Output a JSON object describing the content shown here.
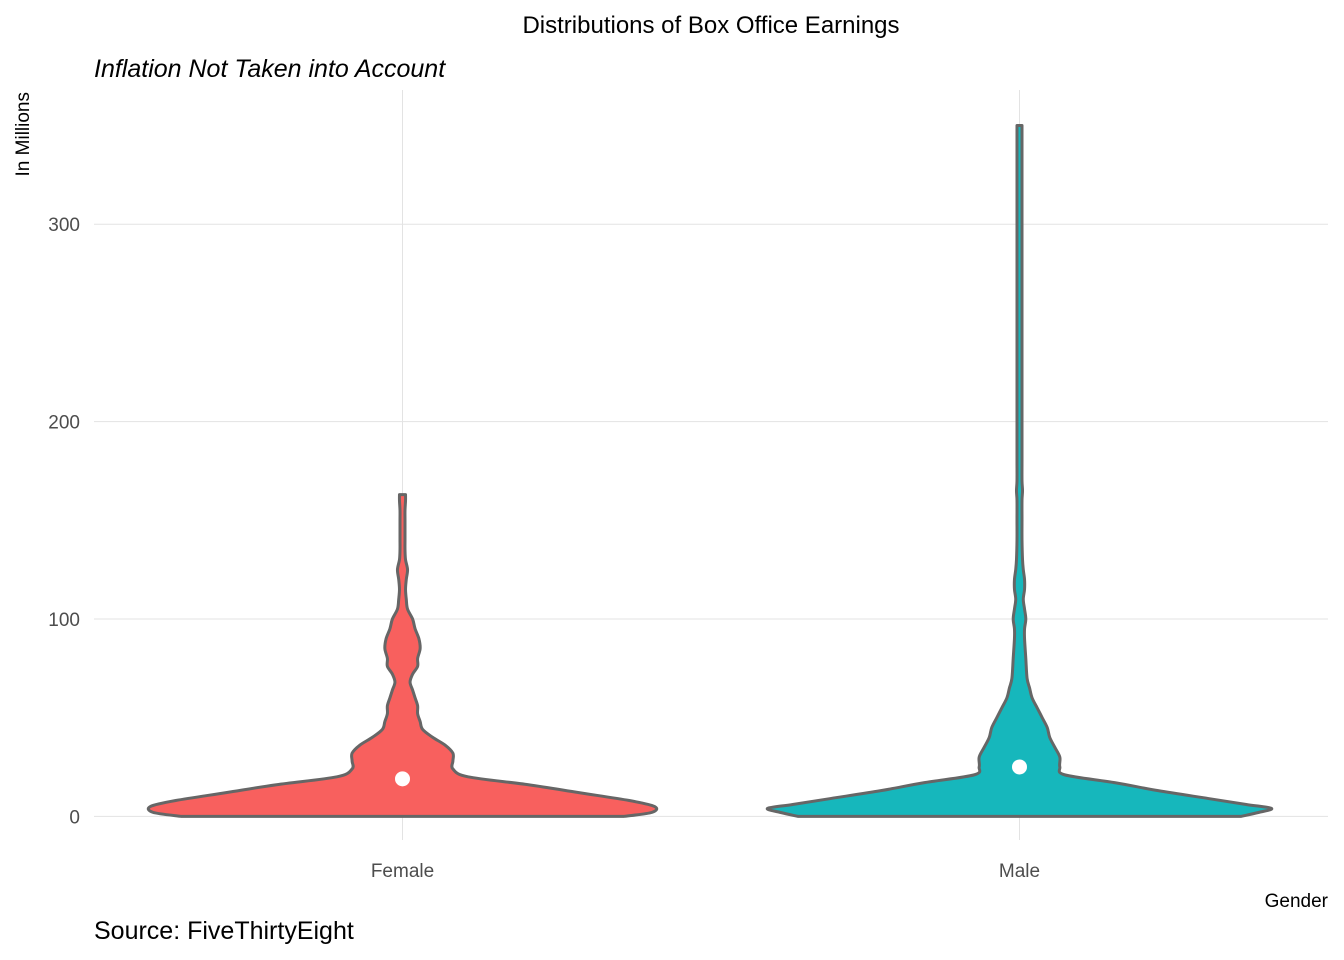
{
  "chart_data": {
    "type": "violin",
    "title": "Distributions of Box Office Earnings",
    "subtitle": "Inflation Not Taken into Account",
    "xlabel": "Gender",
    "ylabel": "In Millions",
    "caption": "Source: FiveThirtyEight",
    "categories": [
      "Female",
      "Male"
    ],
    "ylim": [
      -12,
      368
    ],
    "y_ticks": [
      0,
      100,
      200,
      300
    ],
    "y_tick_labels": [
      "0",
      "100",
      "200",
      "300"
    ],
    "grid": true,
    "legend": "none",
    "colors": {
      "Female": "#f8605e",
      "Male": "#16b7bc",
      "outline": "#666666",
      "median_dot": "#ffffff"
    },
    "series": [
      {
        "category": "Female",
        "median": 19,
        "y_max": 163,
        "half_width_profile": [
          [
            0,
            0.88
          ],
          [
            2,
            0.99
          ],
          [
            5,
            1.0
          ],
          [
            8,
            0.9
          ],
          [
            12,
            0.7
          ],
          [
            16,
            0.5
          ],
          [
            20,
            0.26
          ],
          [
            24,
            0.2
          ],
          [
            28,
            0.2
          ],
          [
            32,
            0.2
          ],
          [
            36,
            0.17
          ],
          [
            40,
            0.12
          ],
          [
            44,
            0.08
          ],
          [
            48,
            0.07
          ],
          [
            52,
            0.06
          ],
          [
            56,
            0.06
          ],
          [
            60,
            0.05
          ],
          [
            64,
            0.04
          ],
          [
            68,
            0.03
          ],
          [
            72,
            0.04
          ],
          [
            76,
            0.06
          ],
          [
            80,
            0.06
          ],
          [
            85,
            0.07
          ],
          [
            90,
            0.065
          ],
          [
            95,
            0.05
          ],
          [
            100,
            0.04
          ],
          [
            105,
            0.02
          ],
          [
            110,
            0.015
          ],
          [
            115,
            0.012
          ],
          [
            120,
            0.015
          ],
          [
            125,
            0.02
          ],
          [
            130,
            0.012
          ],
          [
            135,
            0.008
          ],
          [
            140,
            0.005
          ],
          [
            145,
            0.005
          ],
          [
            150,
            0.008
          ],
          [
            155,
            0.006
          ],
          [
            160,
            0.012
          ],
          [
            163,
            0.012
          ]
        ]
      },
      {
        "category": "Male",
        "median": 25,
        "y_max": 350,
        "half_width_profile": [
          [
            0,
            0.88
          ],
          [
            2,
            0.95
          ],
          [
            4,
            1.0
          ],
          [
            6,
            0.9
          ],
          [
            9,
            0.75
          ],
          [
            13,
            0.55
          ],
          [
            17,
            0.38
          ],
          [
            21,
            0.18
          ],
          [
            25,
            0.16
          ],
          [
            30,
            0.16
          ],
          [
            35,
            0.14
          ],
          [
            40,
            0.12
          ],
          [
            45,
            0.11
          ],
          [
            50,
            0.09
          ],
          [
            55,
            0.07
          ],
          [
            60,
            0.05
          ],
          [
            65,
            0.04
          ],
          [
            70,
            0.03
          ],
          [
            80,
            0.025
          ],
          [
            90,
            0.02
          ],
          [
            95,
            0.02
          ],
          [
            100,
            0.025
          ],
          [
            105,
            0.02
          ],
          [
            110,
            0.015
          ],
          [
            115,
            0.02
          ],
          [
            120,
            0.02
          ],
          [
            125,
            0.015
          ],
          [
            130,
            0.012
          ],
          [
            140,
            0.008
          ],
          [
            150,
            0.005
          ],
          [
            160,
            0.008
          ],
          [
            165,
            0.012
          ],
          [
            170,
            0.008
          ],
          [
            180,
            0.005
          ],
          [
            190,
            0.004
          ],
          [
            200,
            0.002
          ],
          [
            220,
            0.002
          ],
          [
            240,
            0.002
          ],
          [
            255,
            0.005
          ],
          [
            270,
            0.002
          ],
          [
            300,
            0.001
          ],
          [
            330,
            0.001
          ],
          [
            345,
            0.002
          ],
          [
            350,
            0.002
          ]
        ]
      }
    ]
  }
}
